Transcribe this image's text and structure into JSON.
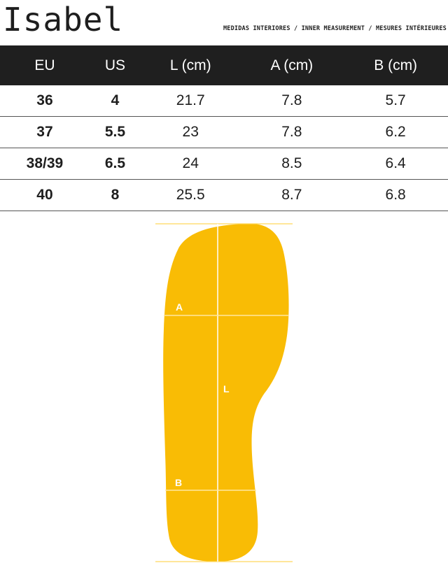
{
  "title": "Isabel",
  "subtitle": "MEDIDAS INTERIORES / INNER MEASUREMENT / MESURES INTÉRIEURES",
  "table": {
    "headers": [
      "EU",
      "US",
      "L (cm)",
      "A (cm)",
      "B (cm)"
    ],
    "rows": [
      [
        "36",
        "4",
        "21.7",
        "7.8",
        "5.7"
      ],
      [
        "37",
        "5.5",
        "23",
        "7.8",
        "6.2"
      ],
      [
        "38/39",
        "6.5",
        "24",
        "8.5",
        "6.4"
      ],
      [
        "40",
        "8",
        "25.5",
        "8.7",
        "6.8"
      ]
    ]
  },
  "diagram": {
    "labels": {
      "a": "A",
      "l": "L",
      "b": "B"
    },
    "colors": {
      "insole": "#F9BC05",
      "guide": "#FFD65C",
      "text": "#1e1e1e",
      "header_bg": "#1f1f1f"
    }
  }
}
